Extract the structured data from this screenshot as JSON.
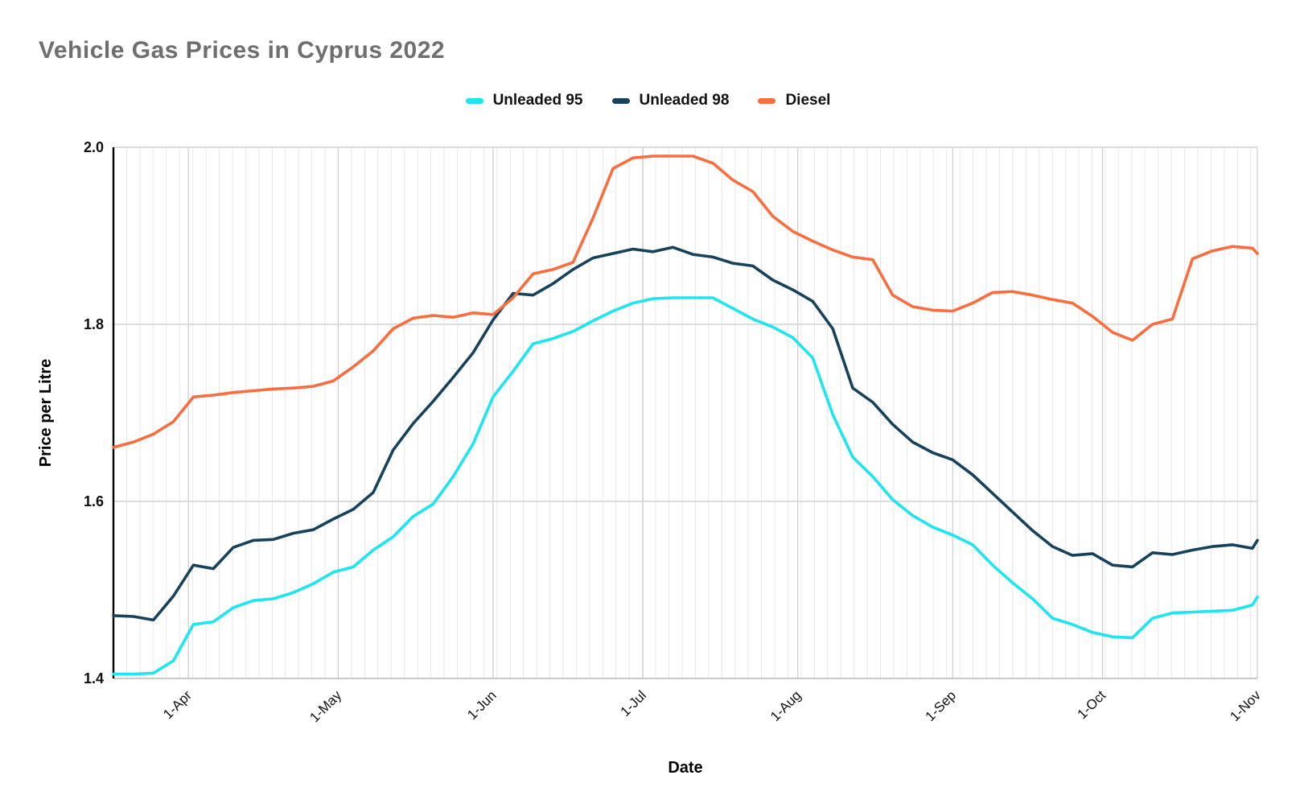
{
  "title": {
    "text": "Vehicle Gas Prices in Cyprus 2022",
    "color": "#6f6f6f"
  },
  "legend": {
    "position": "top-center",
    "items": [
      {
        "label": "Unleaded 95",
        "color": "#1de5f2"
      },
      {
        "label": "Unleaded 98",
        "color": "#16425c"
      },
      {
        "label": "Diesel",
        "color": "#f96d3f"
      }
    ]
  },
  "axes": {
    "x_title": "Date",
    "y_title": "Price per Litre",
    "y_tick_labels": [
      "1.4",
      "1.6",
      "1.8",
      "2.0"
    ],
    "x_tick_labels": [
      "1-Apr",
      "1-May",
      "1-Jun",
      "1-Jul",
      "1-Aug",
      "1-Sep",
      "1-Oct",
      "1-Nov"
    ]
  },
  "colors": {
    "grid_minor_vertical": "#e8e8e8",
    "grid_month_vertical": "#cccccc",
    "grid_horizontal": "#d8d8d8",
    "baseline": "#b9b9b9",
    "y_axis_line": "#000000",
    "tick_text": "#111111"
  },
  "chart_data": {
    "type": "line",
    "title": "Vehicle Gas Prices in Cyprus 2022",
    "xlabel": "Date",
    "ylabel": "Price per Litre",
    "ylim": [
      1.4,
      2.0
    ],
    "y_ticks": [
      1.4,
      1.6,
      1.8,
      2.0
    ],
    "x_ticks": [
      "1-Apr",
      "1-May",
      "1-Jun",
      "1-Jul",
      "1-Aug",
      "1-Sep",
      "1-Oct",
      "1-Nov"
    ],
    "grid": "horizontal major lines + dense light vertical minor lines; darker vertical lines at month starts",
    "legend_position": "top",
    "x_range": "17-Mar to 1-Nov 2022",
    "x": [
      "17-Mar",
      "21-Mar",
      "25-Mar",
      "29-Mar",
      "2-Apr",
      "6-Apr",
      "10-Apr",
      "14-Apr",
      "18-Apr",
      "22-Apr",
      "26-Apr",
      "30-Apr",
      "4-May",
      "8-May",
      "12-May",
      "16-May",
      "20-May",
      "24-May",
      "28-May",
      "1-Jun",
      "5-Jun",
      "9-Jun",
      "13-Jun",
      "17-Jun",
      "21-Jun",
      "25-Jun",
      "29-Jun",
      "3-Jul",
      "7-Jul",
      "11-Jul",
      "15-Jul",
      "19-Jul",
      "23-Jul",
      "27-Jul",
      "31-Jul",
      "4-Aug",
      "8-Aug",
      "12-Aug",
      "16-Aug",
      "20-Aug",
      "24-Aug",
      "28-Aug",
      "1-Sep",
      "5-Sep",
      "9-Sep",
      "13-Sep",
      "17-Sep",
      "21-Sep",
      "25-Sep",
      "29-Sep",
      "3-Oct",
      "7-Oct",
      "11-Oct",
      "15-Oct",
      "19-Oct",
      "23-Oct",
      "27-Oct",
      "31-Oct",
      "1-Nov"
    ],
    "series": [
      {
        "name": "Unleaded 95",
        "color": "#1de5f2",
        "values": [
          1.405,
          1.405,
          1.406,
          1.42,
          1.461,
          1.464,
          1.48,
          1.488,
          1.49,
          1.497,
          1.507,
          1.52,
          1.526,
          1.545,
          1.56,
          1.583,
          1.597,
          1.628,
          1.665,
          1.718,
          1.747,
          1.778,
          1.784,
          1.792,
          1.804,
          1.815,
          1.824,
          1.829,
          1.83,
          1.83,
          1.83,
          1.818,
          1.806,
          1.797,
          1.785,
          1.762,
          1.698,
          1.65,
          1.628,
          1.602,
          1.584,
          1.571,
          1.562,
          1.551,
          1.528,
          1.508,
          1.49,
          1.468,
          1.461,
          1.452,
          1.447,
          1.446,
          1.468,
          1.474,
          1.475,
          1.476,
          1.477,
          1.483,
          1.492
        ]
      },
      {
        "name": "Unleaded 98",
        "color": "#16425c",
        "values": [
          1.471,
          1.47,
          1.466,
          1.493,
          1.528,
          1.524,
          1.548,
          1.556,
          1.557,
          1.564,
          1.568,
          1.58,
          1.591,
          1.61,
          1.658,
          1.688,
          1.713,
          1.74,
          1.768,
          1.805,
          1.835,
          1.833,
          1.846,
          1.862,
          1.875,
          1.88,
          1.885,
          1.882,
          1.887,
          1.879,
          1.876,
          1.869,
          1.866,
          1.85,
          1.839,
          1.826,
          1.795,
          1.728,
          1.712,
          1.687,
          1.667,
          1.655,
          1.647,
          1.63,
          1.609,
          1.588,
          1.567,
          1.549,
          1.539,
          1.541,
          1.528,
          1.526,
          1.542,
          1.54,
          1.545,
          1.549,
          1.551,
          1.547,
          1.556
        ]
      },
      {
        "name": "Diesel",
        "color": "#f96d3f",
        "values": [
          1.661,
          1.667,
          1.676,
          1.69,
          1.718,
          1.72,
          1.723,
          1.725,
          1.727,
          1.728,
          1.73,
          1.736,
          1.752,
          1.77,
          1.795,
          1.807,
          1.81,
          1.808,
          1.813,
          1.811,
          1.83,
          1.857,
          1.862,
          1.87,
          1.92,
          1.976,
          1.988,
          1.99,
          1.99,
          1.99,
          1.982,
          1.963,
          1.95,
          1.922,
          1.905,
          1.894,
          1.884,
          1.876,
          1.873,
          1.833,
          1.82,
          1.816,
          1.815,
          1.824,
          1.836,
          1.837,
          1.833,
          1.828,
          1.824,
          1.809,
          1.791,
          1.782,
          1.8,
          1.806,
          1.874,
          1.883,
          1.888,
          1.886,
          1.88
        ]
      }
    ]
  }
}
